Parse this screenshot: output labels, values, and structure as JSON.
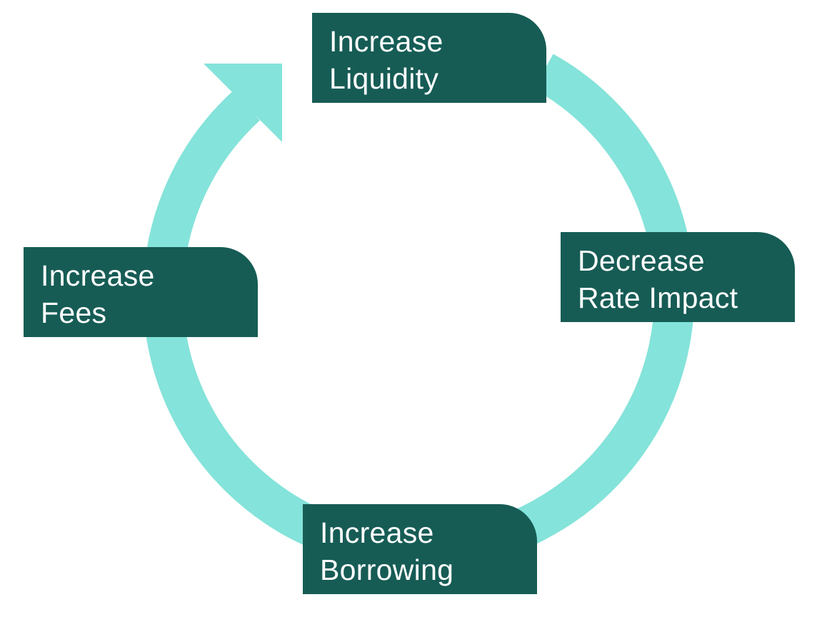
{
  "colors": {
    "ring": "#84e3da",
    "node_fill": "#165c55",
    "node_text": "#ffffff"
  },
  "nodes": [
    {
      "line1": "Increase",
      "line2": "Liquidity"
    },
    {
      "line1": "Decrease",
      "line2": "Rate Impact"
    },
    {
      "line1": "Increase",
      "line2": "Borrowing"
    },
    {
      "line1": "Increase",
      "line2": "Fees"
    }
  ]
}
